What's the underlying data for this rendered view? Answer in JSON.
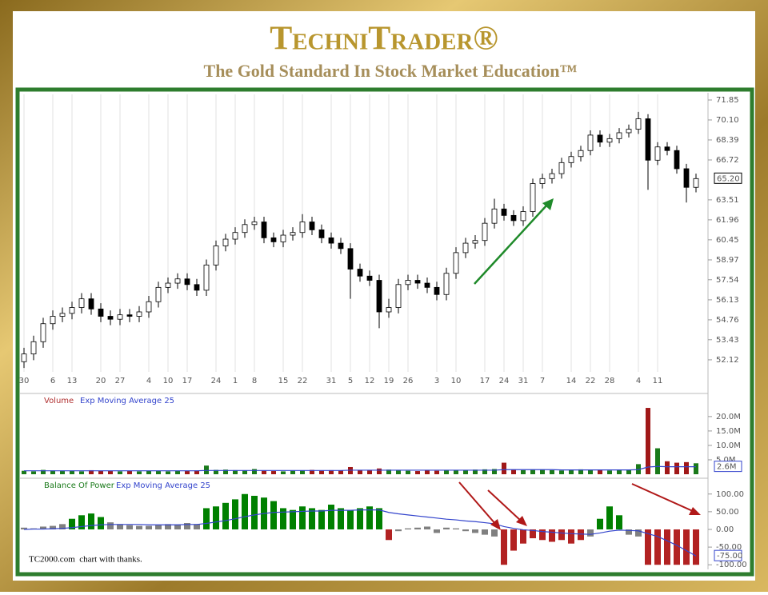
{
  "header": {
    "title": "TechniTrader®",
    "subtitle": "The Gold Standard In Stock Market Education™"
  },
  "chart_data": [
    {
      "type": "candlestick",
      "categories": [
        "30",
        null,
        null,
        "6",
        null,
        "13",
        null,
        null,
        "20",
        null,
        "27",
        null,
        null,
        "4",
        null,
        "10",
        null,
        "17",
        null,
        null,
        "24",
        null,
        "1",
        null,
        "8",
        null,
        null,
        "15",
        null,
        "22",
        null,
        null,
        "31",
        null,
        "5",
        null,
        "12",
        null,
        "19",
        null,
        "26",
        null,
        null,
        "3",
        null,
        "10",
        null,
        null,
        "17",
        null,
        "24",
        null,
        "31",
        null,
        "7",
        null,
        null,
        "14",
        null,
        "22",
        null,
        "28",
        null,
        null,
        "4",
        null,
        "11",
        null,
        null,
        null,
        null
      ],
      "open": [
        52.0,
        52.5,
        53.3,
        54.5,
        55.0,
        55.2,
        55.6,
        56.2,
        55.5,
        55.0,
        54.8,
        55.1,
        55.0,
        55.3,
        56.0,
        57.0,
        57.3,
        57.6,
        57.2,
        56.8,
        58.6,
        60.0,
        60.5,
        61.0,
        61.6,
        61.8,
        60.6,
        60.3,
        60.8,
        61.0,
        61.8,
        61.2,
        60.6,
        60.2,
        59.8,
        58.3,
        57.8,
        57.5,
        55.3,
        55.6,
        57.2,
        57.5,
        57.3,
        57.0,
        56.5,
        58.0,
        59.5,
        60.2,
        60.4,
        61.7,
        62.8,
        62.3,
        61.9,
        62.6,
        64.8,
        65.2,
        65.6,
        66.5,
        67.0,
        67.5,
        68.8,
        68.2,
        68.5,
        69.0,
        69.3,
        70.2,
        66.7,
        67.8,
        67.5,
        66.0,
        64.5
      ],
      "high": [
        52.9,
        53.7,
        54.9,
        55.4,
        55.6,
        56.0,
        56.6,
        56.6,
        55.9,
        55.4,
        55.5,
        55.5,
        55.7,
        56.4,
        57.4,
        57.7,
        58.0,
        58.0,
        57.6,
        59.0,
        60.4,
        60.9,
        61.4,
        62.0,
        62.2,
        62.2,
        61.0,
        61.2,
        61.4,
        62.4,
        62.2,
        61.6,
        61.0,
        60.6,
        60.2,
        58.7,
        58.2,
        57.9,
        56.2,
        57.6,
        57.9,
        57.9,
        57.7,
        57.4,
        58.4,
        59.9,
        60.6,
        60.8,
        62.1,
        63.6,
        63.2,
        62.7,
        63.0,
        65.2,
        65.6,
        66.0,
        66.9,
        67.4,
        67.9,
        69.2,
        69.2,
        68.9,
        69.4,
        69.7,
        70.8,
        70.6,
        68.2,
        68.2,
        67.9,
        66.4,
        65.6
      ],
      "low": [
        51.6,
        52.1,
        52.9,
        54.1,
        54.6,
        54.8,
        55.2,
        55.1,
        54.6,
        54.4,
        54.4,
        54.6,
        54.6,
        54.9,
        55.6,
        56.6,
        56.9,
        56.8,
        56.4,
        56.4,
        58.2,
        59.6,
        60.1,
        60.6,
        61.2,
        60.2,
        59.9,
        59.9,
        60.4,
        60.6,
        60.8,
        60.2,
        59.8,
        59.4,
        56.2,
        57.4,
        57.1,
        54.2,
        54.9,
        55.2,
        56.8,
        56.9,
        56.6,
        56.1,
        56.1,
        57.6,
        59.1,
        59.8,
        60.0,
        61.3,
        61.9,
        61.5,
        61.5,
        62.2,
        64.4,
        64.8,
        65.2,
        66.1,
        66.6,
        67.1,
        67.8,
        67.8,
        68.1,
        68.6,
        68.9,
        64.3,
        66.3,
        67.1,
        65.6,
        63.3,
        64.1
      ],
      "close": [
        52.5,
        53.3,
        54.5,
        55.0,
        55.2,
        55.6,
        56.2,
        55.5,
        55.0,
        54.8,
        55.1,
        55.0,
        55.3,
        56.0,
        57.0,
        57.3,
        57.6,
        57.2,
        56.8,
        58.6,
        60.0,
        60.5,
        61.0,
        61.6,
        61.8,
        60.6,
        60.3,
        60.8,
        61.0,
        61.8,
        61.2,
        60.6,
        60.2,
        59.8,
        58.3,
        57.8,
        57.5,
        55.3,
        55.6,
        57.2,
        57.5,
        57.3,
        57.0,
        56.5,
        58.0,
        59.5,
        60.2,
        60.4,
        61.7,
        62.8,
        62.3,
        61.9,
        62.6,
        64.8,
        65.2,
        65.6,
        66.5,
        67.0,
        67.5,
        68.8,
        68.2,
        68.5,
        69.0,
        69.3,
        70.2,
        66.7,
        67.8,
        67.5,
        66.0,
        64.5,
        65.2
      ],
      "ylim": [
        51.35,
        72.35
      ],
      "log_scale": true,
      "yticks": [
        71.85,
        {
          "value": 70.1,
          "label": "70.10"
        },
        68.39,
        66.72,
        63.51,
        61.96,
        60.45,
        58.97,
        57.54,
        56.13,
        54.76,
        53.43,
        52.12
      ],
      "last_price": {
        "value": 65.2,
        "label": "65.20"
      },
      "grid": true,
      "up_color": "#ffffff",
      "down_color": "#000000"
    },
    {
      "type": "bar",
      "series": [
        {
          "name": "Volume",
          "color": "#b03030",
          "up_color": "#1a7a1a",
          "down_color": "#a01818",
          "values": [
            1.2,
            1.0,
            1.5,
            1.3,
            1.1,
            1.2,
            1.0,
            1.4,
            1.2,
            1.1,
            1.0,
            1.1,
            1.0,
            1.2,
            1.1,
            1.0,
            1.2,
            1.1,
            1.3,
            3.0,
            1.5,
            1.6,
            1.4,
            1.3,
            1.8,
            1.2,
            1.1,
            1.0,
            1.2,
            1.3,
            1.5,
            1.2,
            1.4,
            1.3,
            2.5,
            1.5,
            1.3,
            2.0,
            1.6,
            1.4,
            1.2,
            1.1,
            1.3,
            1.2,
            1.5,
            1.4,
            1.3,
            1.6,
            1.7,
            1.8,
            4.0,
            1.6,
            1.4,
            1.5,
            1.6,
            1.4,
            1.3,
            1.5,
            1.7,
            1.6,
            1.4,
            1.3,
            1.5,
            1.4,
            3.5,
            23.0,
            9.0,
            4.5,
            4.0,
            4.2,
            3.8
          ]
        },
        {
          "name": "Exp Moving Average 25",
          "type": "line",
          "color": "#3344cc",
          "values": [
            1.2,
            1.2,
            1.2,
            1.2,
            1.2,
            1.2,
            1.2,
            1.2,
            1.2,
            1.2,
            1.2,
            1.2,
            1.2,
            1.2,
            1.2,
            1.2,
            1.2,
            1.2,
            1.2,
            1.3,
            1.3,
            1.3,
            1.3,
            1.3,
            1.3,
            1.3,
            1.3,
            1.3,
            1.3,
            1.3,
            1.3,
            1.3,
            1.3,
            1.3,
            1.4,
            1.4,
            1.4,
            1.4,
            1.4,
            1.4,
            1.4,
            1.4,
            1.4,
            1.4,
            1.4,
            1.4,
            1.4,
            1.4,
            1.4,
            1.4,
            1.6,
            1.6,
            1.6,
            1.6,
            1.6,
            1.6,
            1.5,
            1.5,
            1.5,
            1.5,
            1.5,
            1.5,
            1.5,
            1.5,
            1.6,
            2.5,
            2.7,
            2.6,
            2.6,
            2.6,
            2.6
          ],
          "last_value_label": "2.6M"
        }
      ],
      "ylim": [
        0,
        24.4
      ],
      "yticks": [
        {
          "value": 20,
          "label": "20.0M"
        },
        {
          "value": 15,
          "label": "15.0M"
        },
        {
          "value": 10,
          "label": "10.0M"
        },
        {
          "value": 5,
          "label": "5.0M"
        }
      ]
    },
    {
      "type": "bar",
      "series": [
        {
          "name": "Balance Of Power",
          "color": "green",
          "values": [
            5,
            3,
            8,
            10,
            15,
            30,
            40,
            45,
            35,
            20,
            15,
            12,
            10,
            10,
            12,
            15,
            14,
            18,
            15,
            60,
            65,
            75,
            85,
            100,
            95,
            90,
            80,
            60,
            55,
            65,
            60,
            55,
            70,
            60,
            55,
            60,
            65,
            60,
            -30,
            -5,
            3,
            5,
            8,
            -10,
            5,
            3,
            -5,
            -10,
            -15,
            -20,
            -100,
            -60,
            -40,
            -25,
            -30,
            -35,
            -30,
            -40,
            -30,
            -20,
            30,
            65,
            40,
            -15,
            -20,
            -100,
            -100,
            -100,
            -100,
            -100,
            -100
          ],
          "colors": [
            "gray",
            "gray",
            "gray",
            "gray",
            "gray",
            "green",
            "green",
            "green",
            "green",
            "gray",
            "gray",
            "gray",
            "gray",
            "gray",
            "gray",
            "gray",
            "gray",
            "gray",
            "gray",
            "green",
            "green",
            "green",
            "green",
            "green",
            "green",
            "green",
            "green",
            "green",
            "green",
            "green",
            "green",
            "green",
            "green",
            "green",
            "green",
            "green",
            "green",
            "green",
            "firebrick",
            "gray",
            "gray",
            "gray",
            "gray",
            "gray",
            "gray",
            "gray",
            "gray",
            "gray",
            "gray",
            "gray",
            "firebrick",
            "firebrick",
            "firebrick",
            "firebrick",
            "firebrick",
            "firebrick",
            "firebrick",
            "firebrick",
            "firebrick",
            "gray",
            "green",
            "green",
            "green",
            "gray",
            "gray",
            "firebrick",
            "firebrick",
            "firebrick",
            "firebrick",
            "firebrick",
            "firebrick"
          ]
        },
        {
          "name": "Exp Moving Average 25",
          "type": "line",
          "color": "#3344cc",
          "values": [
            0,
            1,
            1,
            2,
            3,
            5,
            8,
            11,
            13,
            14,
            14,
            14,
            14,
            13,
            13,
            13,
            13,
            14,
            14,
            17,
            21,
            25,
            30,
            36,
            41,
            45,
            48,
            49,
            50,
            51,
            52,
            52,
            54,
            54,
            54,
            55,
            55,
            55,
            48,
            44,
            41,
            38,
            35,
            32,
            29,
            27,
            24,
            22,
            19,
            16,
            8,
            3,
            -1,
            -3,
            -6,
            -8,
            -10,
            -12,
            -13,
            -14,
            -10,
            -5,
            -2,
            -3,
            -4,
            -12,
            -20,
            -32,
            -45,
            -60,
            -75
          ],
          "last_value_label": "-75.00"
        }
      ],
      "ylim": [
        -104,
        113
      ],
      "yticks": [
        {
          "value": 100,
          "label": "100.00"
        },
        {
          "value": 50,
          "label": "50.00"
        },
        {
          "value": 0,
          "label": "0.00"
        },
        {
          "value": -50,
          "label": "-50.00"
        },
        {
          "value": -100,
          "label": "-100.00"
        }
      ]
    }
  ],
  "footer": "TC2000.com  chart with thanks."
}
